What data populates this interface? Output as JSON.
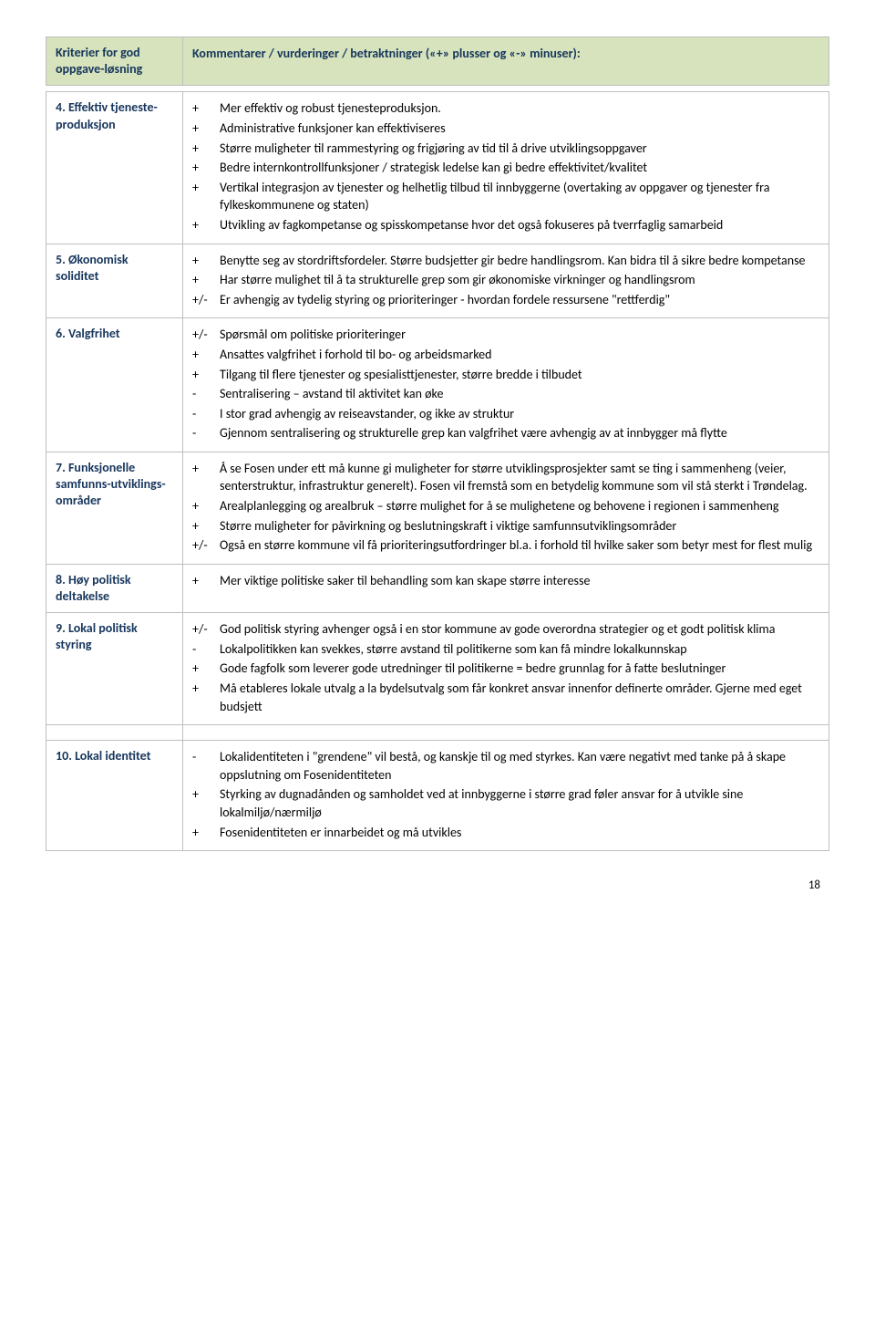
{
  "header": {
    "left": "Kriterier for god oppgave-løsning",
    "right": "Kommentarer / vurderinger / betraktninger («+» plusser og «-» minuser):"
  },
  "rows": [
    {
      "label": "4. Effektiv tjeneste-produksjon",
      "items": [
        {
          "s": "+",
          "t": "Mer effektiv og robust tjenesteproduksjon."
        },
        {
          "s": "+",
          "t": "Administrative funksjoner kan effektiviseres"
        },
        {
          "s": "+",
          "t": "Større muligheter til rammestyring og frigjøring av tid til å drive utviklingsoppgaver"
        },
        {
          "s": "+",
          "t": "Bedre internkontrollfunksjoner / strategisk ledelse kan gi bedre effektivitet/kvalitet"
        },
        {
          "s": "+",
          "t": "Vertikal integrasjon av tjenester og helhetlig tilbud til innbyggerne (overtaking av oppgaver og tjenester fra fylkeskommunene og staten)"
        },
        {
          "s": "+",
          "t": "Utvikling av fagkompetanse og spisskompetanse hvor det også fokuseres på tverrfaglig samarbeid"
        }
      ]
    },
    {
      "label": "5. Økonomisk soliditet",
      "items": [
        {
          "s": "+",
          "t": "Benytte seg av stordriftsfordeler. Større budsjetter gir bedre handlingsrom. Kan bidra til å sikre bedre kompetanse"
        },
        {
          "s": "+",
          "t": "Har større mulighet til å ta strukturelle grep som gir økonomiske virkninger og handlingsrom"
        },
        {
          "s": "+/-",
          "t": "Er avhengig av tydelig styring og prioriteringer - hvordan fordele ressursene \"rettferdig\""
        }
      ]
    },
    {
      "label": "6. Valgfrihet",
      "items": [
        {
          "s": "+/-",
          "t": "Spørsmål om politiske prioriteringer"
        },
        {
          "s": "+",
          "t": "Ansattes valgfrihet i forhold til bo- og arbeidsmarked"
        },
        {
          "s": "+",
          "t": "Tilgang til flere tjenester og spesialisttjenester, større bredde i tilbudet"
        },
        {
          "s": "-",
          "t": "Sentralisering – avstand til aktivitet kan øke"
        },
        {
          "s": "-",
          "t": "I stor grad avhengig av reiseavstander, og ikke av struktur"
        },
        {
          "s": "-",
          "t": "Gjennom sentralisering og strukturelle grep kan valgfrihet være avhengig av at innbygger må flytte"
        }
      ]
    },
    {
      "label": "7. Funksjonelle samfunns-utviklings-områder",
      "items": [
        {
          "s": "+",
          "t": "Å se Fosen under ett må kunne gi muligheter for større utviklingsprosjekter samt se ting i sammenheng (veier, senterstruktur, infrastruktur generelt). Fosen vil fremstå som en betydelig kommune som vil stå sterkt i Trøndelag."
        },
        {
          "s": "+",
          "t": "Arealplanlegging og arealbruk – større mulighet for å se mulighetene og behovene i regionen i sammenheng"
        },
        {
          "s": "+",
          "t": "Større muligheter for påvirkning og beslutningskraft i viktige samfunnsutviklingsområder"
        },
        {
          "s": "+/-",
          "t": "Også en større kommune vil få prioriteringsutfordringer bl.a. i forhold til hvilke saker som betyr mest for flest mulig"
        }
      ]
    },
    {
      "label": "8. Høy politisk deltakelse",
      "items": [
        {
          "s": "+",
          "t": "Mer viktige politiske saker til behandling som kan skape større interesse"
        }
      ]
    },
    {
      "label": "9. Lokal politisk styring",
      "items": [
        {
          "s": "+/-",
          "t": "God politisk styring avhenger også i en stor kommune av gode overordna strategier og et godt politisk klima"
        },
        {
          "s": "-",
          "t": "Lokalpolitikken kan svekkes, større avstand til politikerne som kan få mindre lokalkunnskap"
        },
        {
          "s": "+",
          "t": "Gode fagfolk som leverer gode utredninger til politikerne = bedre grunnlag for å fatte beslutninger"
        },
        {
          "s": "+",
          "t": "Må etableres lokale utvalg a la bydelsutvalg som får konkret ansvar innenfor definerte områder. Gjerne med eget budsjett"
        }
      ]
    },
    {
      "label": "10. Lokal identitet",
      "items": [
        {
          "s": "-",
          "t": "Lokalidentiteten i \"grendene\" vil bestå, og kanskje til og med styrkes. Kan være negativt med tanke på å skape oppslutning om Fosenidentiteten"
        },
        {
          "s": "+",
          "t": "Styrking av dugnadånden og samholdet ved at innbyggerne i større grad føler ansvar for å utvikle sine lokalmiljø/nærmiljø"
        },
        {
          "s": "+",
          "t": "Fosenidentiteten er innarbeidet og må utvikles"
        }
      ]
    }
  ],
  "pageNumber": "18"
}
